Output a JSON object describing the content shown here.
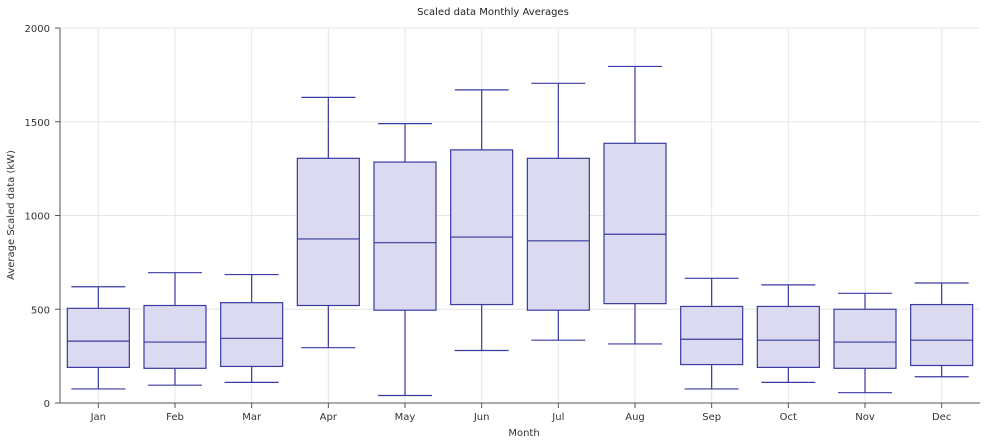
{
  "chart_data": {
    "type": "box",
    "title": "Scaled data Monthly Averages",
    "xlabel": "Month",
    "ylabel": "Average Scaled data (kW)",
    "ylim": [
      0,
      2000
    ],
    "yticks": [
      0,
      500,
      1000,
      1500,
      2000
    ],
    "grid": true,
    "categories": [
      "Jan",
      "Feb",
      "Mar",
      "Apr",
      "May",
      "Jun",
      "Jul",
      "Aug",
      "Sep",
      "Oct",
      "Nov",
      "Dec"
    ],
    "boxes": [
      {
        "min": 75,
        "q1": 190,
        "median": 330,
        "q3": 505,
        "max": 620
      },
      {
        "min": 95,
        "q1": 185,
        "median": 325,
        "q3": 520,
        "max": 695
      },
      {
        "min": 110,
        "q1": 195,
        "median": 345,
        "q3": 535,
        "max": 685
      },
      {
        "min": 295,
        "q1": 520,
        "median": 875,
        "q3": 1305,
        "max": 1630
      },
      {
        "min": 40,
        "q1": 495,
        "median": 855,
        "q3": 1285,
        "max": 1490
      },
      {
        "min": 280,
        "q1": 525,
        "median": 885,
        "q3": 1350,
        "max": 1670
      },
      {
        "min": 335,
        "q1": 495,
        "median": 865,
        "q3": 1305,
        "max": 1705
      },
      {
        "min": 315,
        "q1": 530,
        "median": 900,
        "q3": 1385,
        "max": 1795
      },
      {
        "min": 75,
        "q1": 205,
        "median": 340,
        "q3": 515,
        "max": 665
      },
      {
        "min": 110,
        "q1": 190,
        "median": 335,
        "q3": 515,
        "max": 630
      },
      {
        "min": 55,
        "q1": 185,
        "median": 325,
        "q3": 500,
        "max": 585
      },
      {
        "min": 140,
        "q1": 200,
        "median": 335,
        "q3": 525,
        "max": 640
      }
    ]
  }
}
